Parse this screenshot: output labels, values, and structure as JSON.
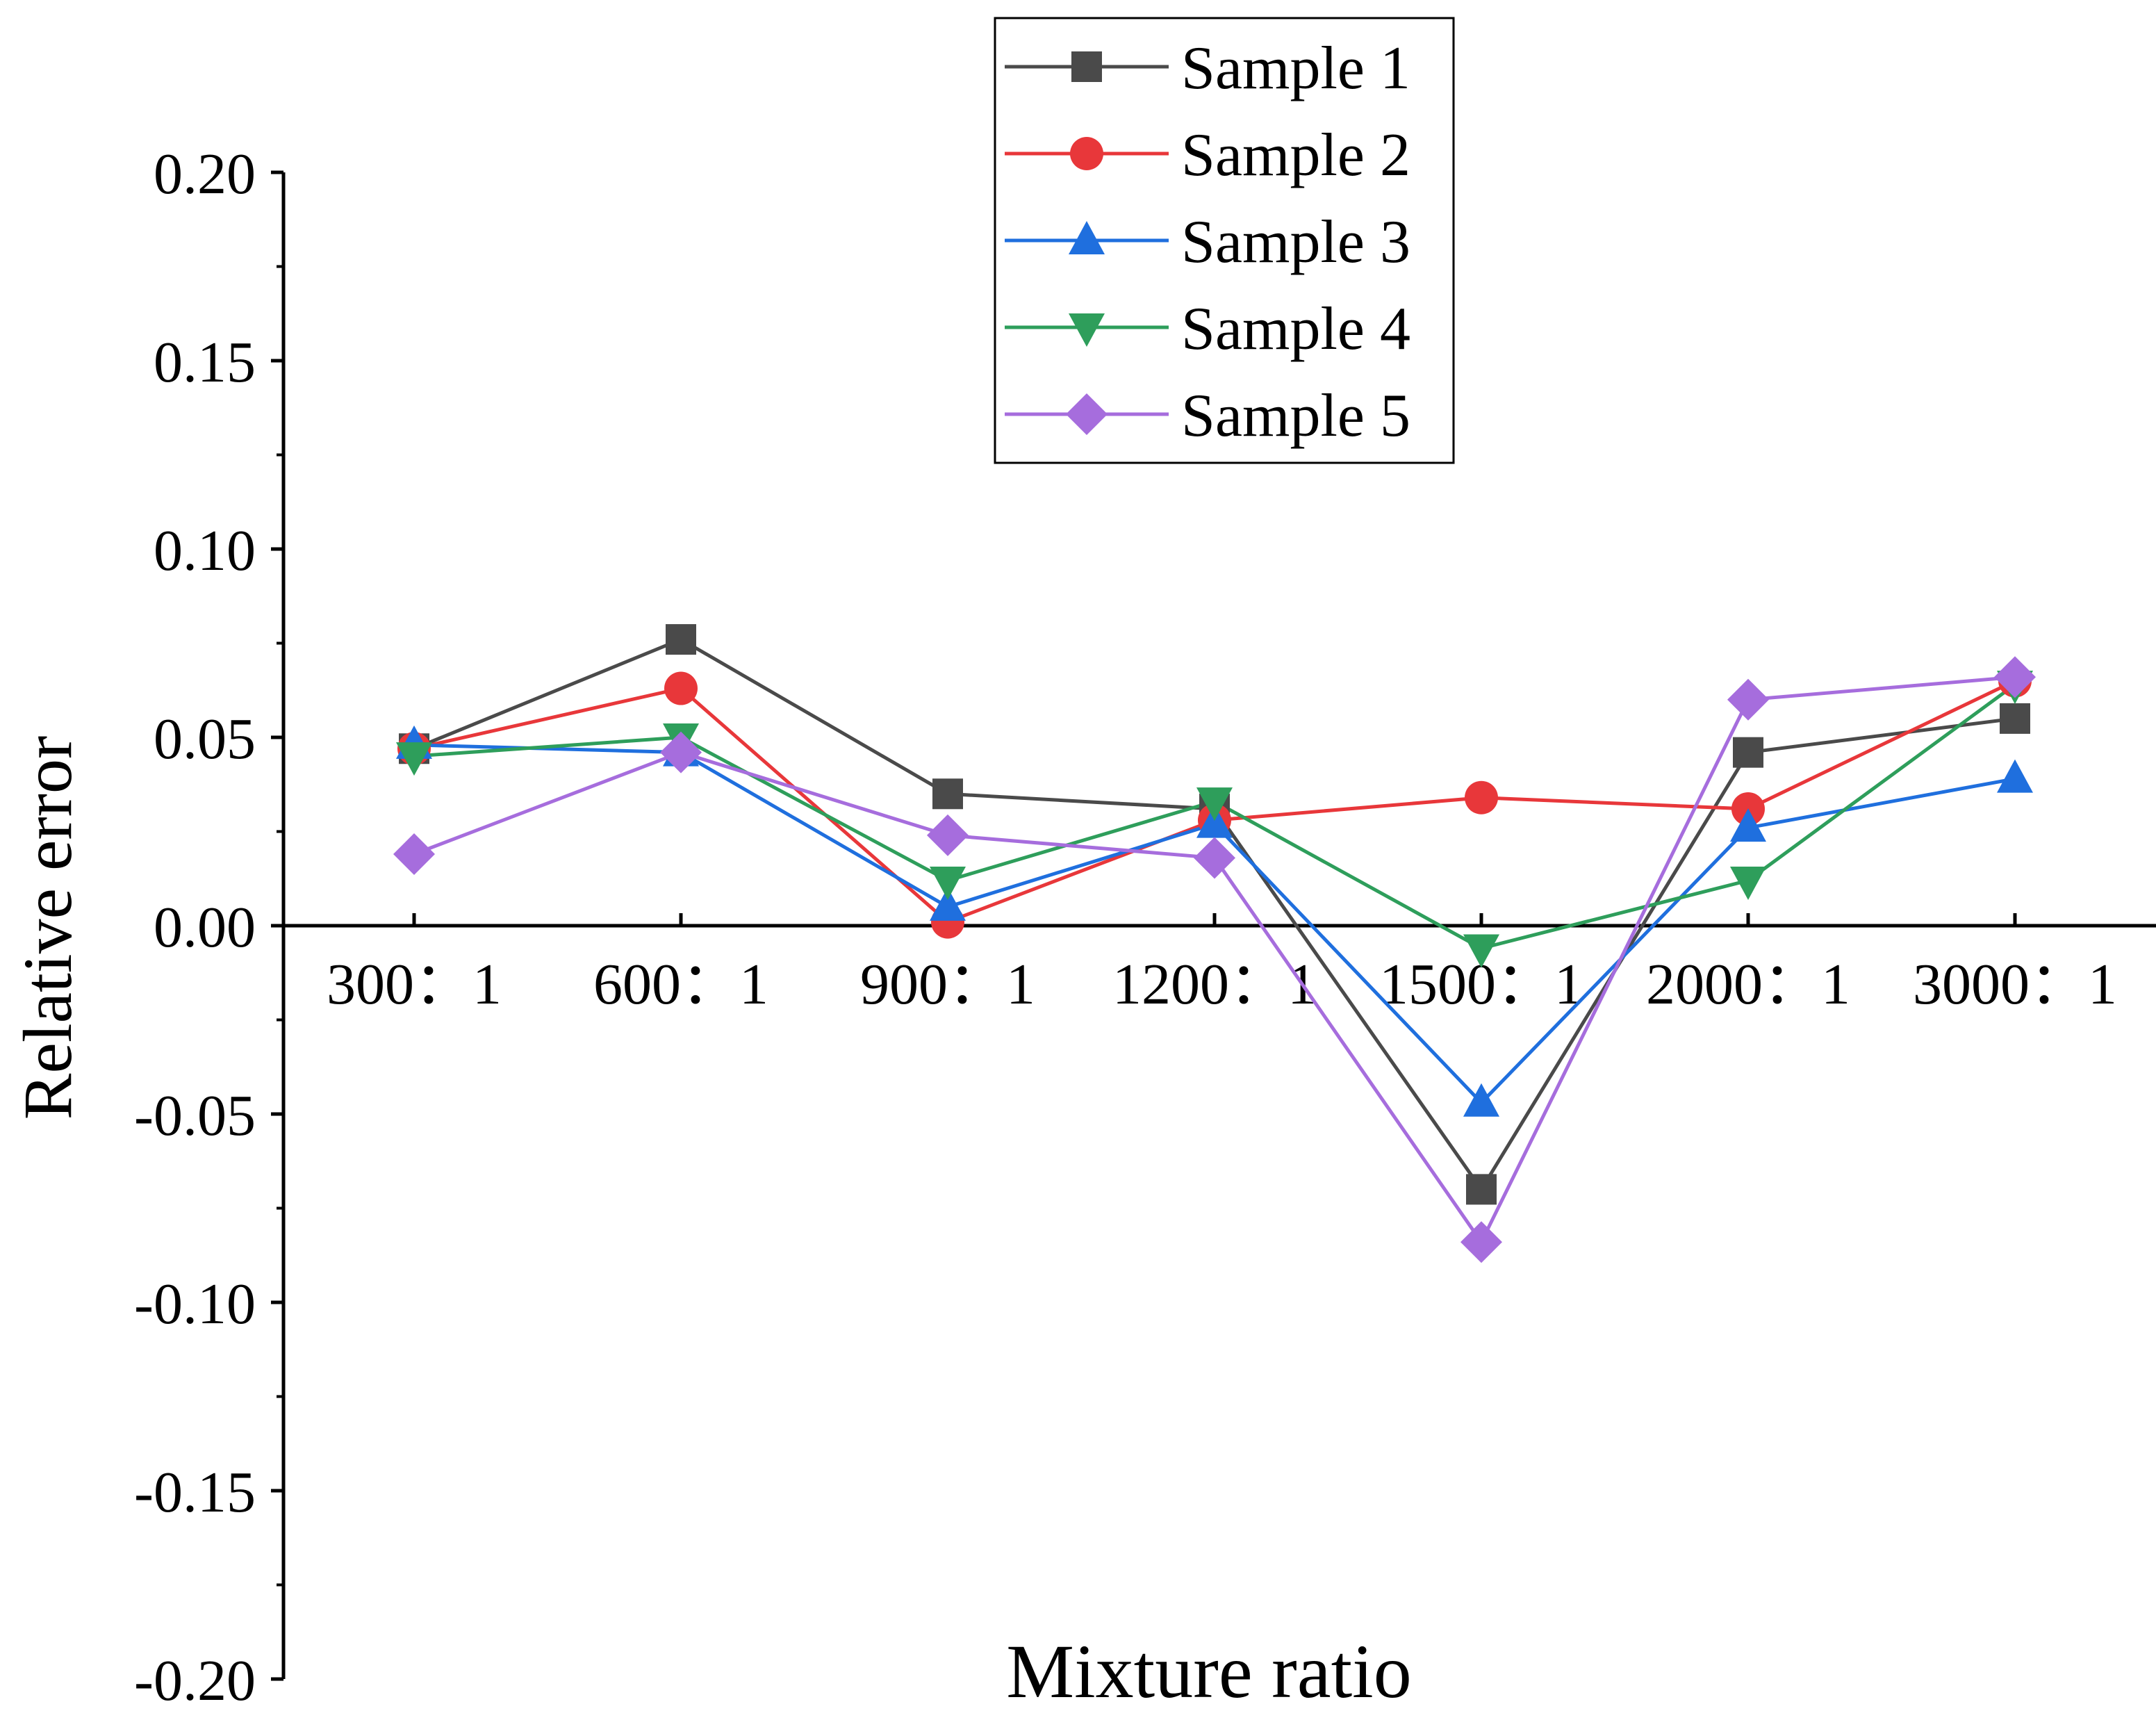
{
  "chart_data": {
    "type": "line",
    "title": "",
    "xlabel": "Mixture ratio",
    "ylabel": "Relative error",
    "categories": [
      "300：1",
      "600：1",
      "900：1",
      "1200：1",
      "1500：1",
      "2000：1",
      "3000：1"
    ],
    "ylim": [
      -0.2,
      0.2
    ],
    "yticks": [
      "0.20",
      "0.15",
      "0.10",
      "0.05",
      "0.00",
      "-0.05",
      "-0.10",
      "-0.15",
      "-0.20"
    ],
    "ytick_values": [
      0.2,
      0.15,
      0.1,
      0.05,
      0.0,
      -0.05,
      -0.1,
      -0.15,
      -0.2
    ],
    "legend_position": "top-right",
    "grid": false,
    "series": [
      {
        "name": "Sample 1",
        "color": "#4a4a4a",
        "marker": "square",
        "values": [
          0.047,
          0.076,
          0.035,
          0.031,
          -0.07,
          0.046,
          0.055
        ]
      },
      {
        "name": "Sample 2",
        "color": "#e8373a",
        "marker": "circle",
        "values": [
          0.047,
          0.063,
          0.001,
          0.028,
          0.034,
          0.031,
          0.065
        ]
      },
      {
        "name": "Sample 3",
        "color": "#1f6fde",
        "marker": "triangle-up",
        "values": [
          0.048,
          0.046,
          0.005,
          0.027,
          -0.047,
          0.026,
          0.039
        ]
      },
      {
        "name": "Sample 4",
        "color": "#2e9e5b",
        "marker": "triangle-down",
        "values": [
          0.045,
          0.05,
          0.012,
          0.033,
          -0.006,
          0.012,
          0.064
        ]
      },
      {
        "name": "Sample 5",
        "color": "#a66ddd",
        "marker": "diamond",
        "values": [
          0.019,
          0.046,
          0.024,
          0.018,
          -0.084,
          0.06,
          0.066
        ]
      }
    ]
  }
}
